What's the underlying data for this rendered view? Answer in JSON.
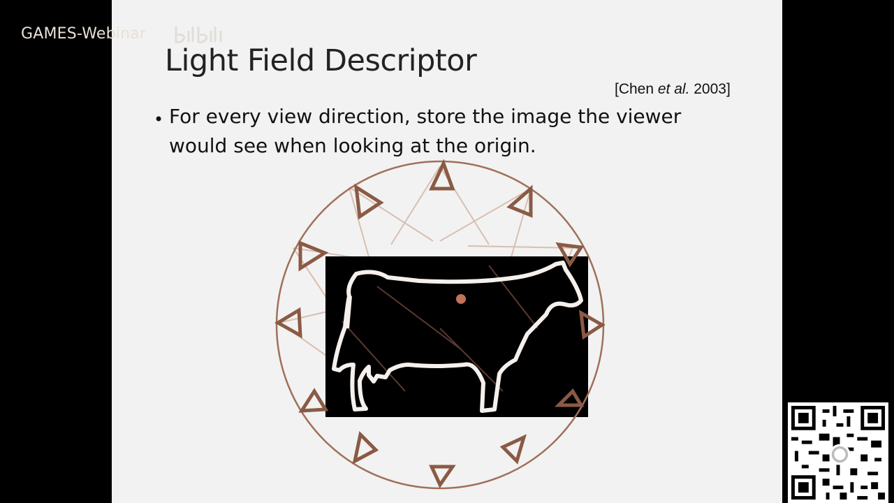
{
  "watermark": {
    "text": "GAMES-Webinar",
    "logo_icon": "bilibili-logo"
  },
  "slide": {
    "title": "Light Field Descriptor",
    "citation": {
      "author": "[Chen ",
      "etal": "et al.",
      "year": " 2003]"
    },
    "bullet": "For every view direction, store the image the viewer would see when looking at the origin."
  },
  "diagram": {
    "description_icon": "cow-silhouette",
    "circle_color": "#a0705a",
    "camera_color": "#8a5a45",
    "ray_color": "#d7b9ab",
    "origin_color": "#c0735a"
  },
  "overlay": {
    "qr_icon": "qr-code"
  }
}
